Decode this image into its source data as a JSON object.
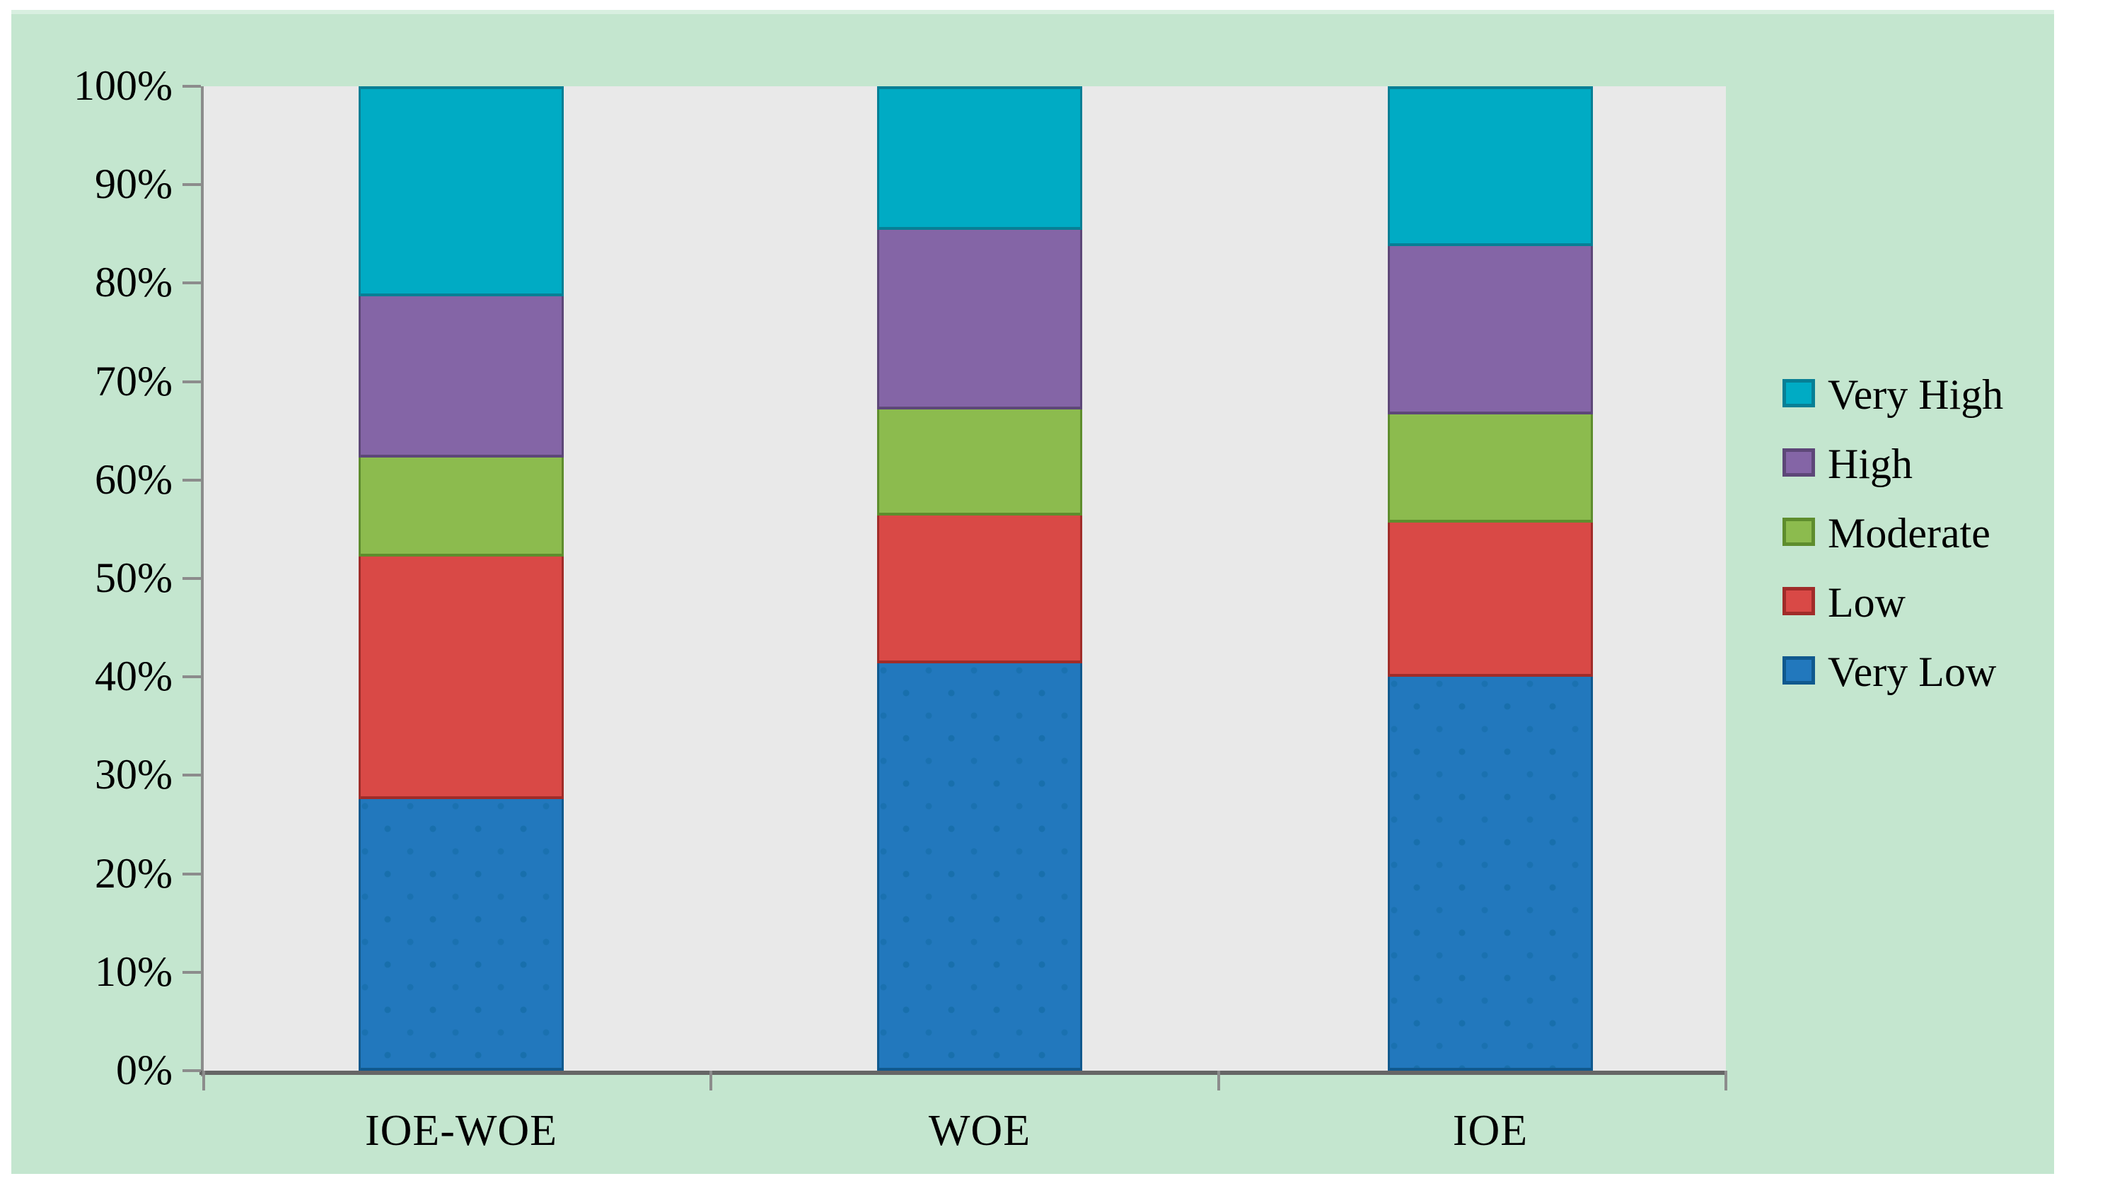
{
  "chart_data": {
    "type": "bar",
    "variant": "100%-stacked-column",
    "title": "",
    "xlabel": "",
    "ylabel": "",
    "categories": [
      "IOE-WOE",
      "WOE",
      "IOE"
    ],
    "series": [
      {
        "name": "Very Low",
        "color": "#2278bd",
        "border": "#10598e",
        "values": [
          27.6,
          41.4,
          40.0
        ]
      },
      {
        "name": "Low",
        "color": "#d94946",
        "border": "#a02c29",
        "values": [
          24.6,
          15.0,
          15.7
        ]
      },
      {
        "name": "Moderate",
        "color": "#8cbb4e",
        "border": "#5e8d2d",
        "values": [
          10.1,
          10.8,
          11.0
        ]
      },
      {
        "name": "High",
        "color": "#8465a6",
        "border": "#5d4778",
        "values": [
          16.4,
          18.2,
          17.1
        ]
      },
      {
        "name": "Very High",
        "color": "#00abc4",
        "border": "#077f95",
        "values": [
          21.3,
          14.6,
          16.2
        ]
      }
    ],
    "ylim": [
      0,
      100
    ],
    "y_tick_labels": [
      "0%",
      "10%",
      "20%",
      "30%",
      "40%",
      "50%",
      "60%",
      "70%",
      "80%",
      "90%",
      "100%"
    ],
    "grid": false,
    "legend_position": "right"
  },
  "legend": {
    "items": [
      {
        "label": "Very High",
        "color": "#00abc4",
        "border": "#077f95"
      },
      {
        "label": "High",
        "color": "#8465a6",
        "border": "#5d4778"
      },
      {
        "label": "Moderate",
        "color": "#8cbb4e",
        "border": "#5e8d2d"
      },
      {
        "label": "Low",
        "color": "#d94946",
        "border": "#a02c29"
      },
      {
        "label": "Very Low",
        "color": "#2278bd",
        "border": "#10598e"
      }
    ]
  },
  "colors": {
    "page_bg": "#ffffff",
    "chart_bg": "#c4e6cf",
    "plot_bg": "#e9e9e9",
    "axis_line": "#666666",
    "tick": "#8c8c8c",
    "text": "#000000"
  }
}
